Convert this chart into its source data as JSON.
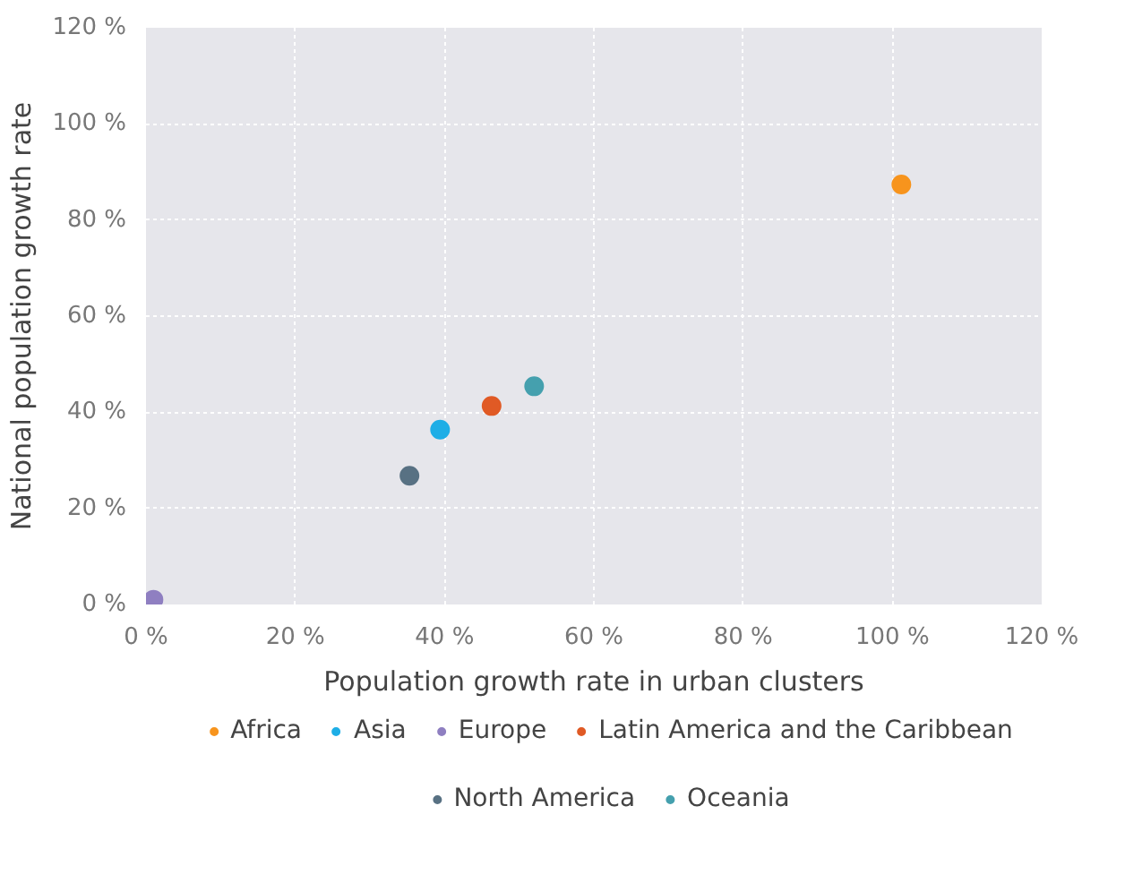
{
  "chart_data": {
    "type": "scatter",
    "xlabel": "Population growth rate in urban clusters",
    "ylabel": "National population growth rate",
    "series": [
      {
        "name": "Africa",
        "color": "#f7941d",
        "x": [
          101.2
        ],
        "values": [
          87.4
        ]
      },
      {
        "name": "Asia",
        "color": "#1eaee6",
        "x": [
          39.4
        ],
        "values": [
          36.4
        ]
      },
      {
        "name": "Europe",
        "color": "#8f7fc1",
        "x": [
          1
        ],
        "values": [
          1
        ]
      },
      {
        "name": "Latin America and the Caribbean",
        "color": "#e05a25",
        "x": [
          46.3
        ],
        "values": [
          41.3
        ]
      },
      {
        "name": "North America",
        "color": "#587183",
        "x": [
          35.3
        ],
        "values": [
          26.8
        ]
      },
      {
        "name": "Oceania",
        "color": "#45a0ae",
        "x": [
          52
        ],
        "values": [
          45.4
        ]
      }
    ],
    "xlim": [
      0,
      120
    ],
    "ylim": [
      0,
      120
    ],
    "xticks": [
      {
        "value": 0,
        "label": "0 %"
      },
      {
        "value": 20,
        "label": "20 %"
      },
      {
        "value": 40,
        "label": "40 %"
      },
      {
        "value": 60,
        "label": "60 %"
      },
      {
        "value": 80,
        "label": "80 %"
      },
      {
        "value": 100,
        "label": "100 %"
      },
      {
        "value": 120,
        "label": "120 %"
      }
    ],
    "yticks": [
      {
        "value": 0,
        "label": "0 %"
      },
      {
        "value": 20,
        "label": "20 %"
      },
      {
        "value": 40,
        "label": "40 %"
      },
      {
        "value": 60,
        "label": "60 %"
      },
      {
        "value": 80,
        "label": "80 %"
      },
      {
        "value": 100,
        "label": "100 %"
      },
      {
        "value": 120,
        "label": "120 %"
      }
    ],
    "grid": true,
    "legend": "bottom",
    "marker": "circle"
  }
}
